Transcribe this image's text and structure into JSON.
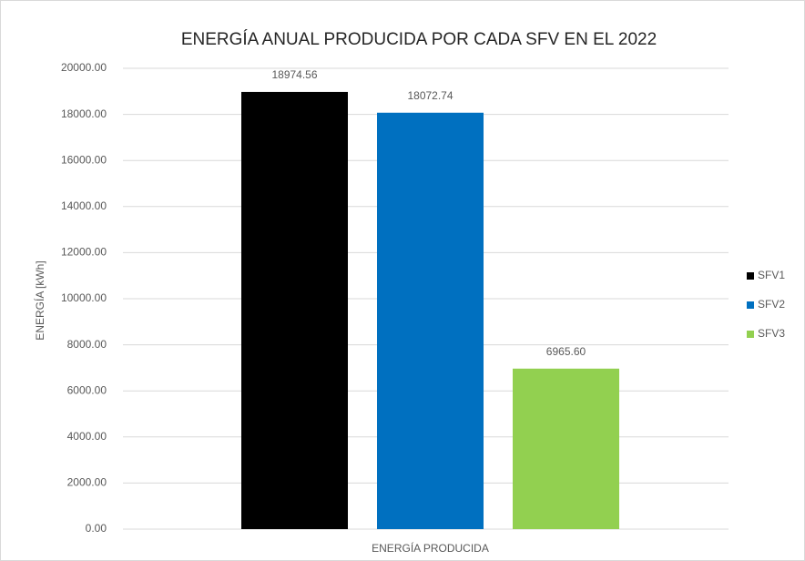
{
  "chart_data": {
    "type": "bar",
    "title": "ENERGÍA ANUAL PRODUCIDA POR CADA SFV EN EL 2022",
    "y_label": "ENERGÍA [kWh]",
    "categories": [
      "ENERGÍA PRODUCIDA"
    ],
    "series": [
      {
        "name": "SFV1",
        "color": "#000000",
        "values": [
          18974.56
        ],
        "value_labels": [
          "18974.56"
        ]
      },
      {
        "name": "SFV2",
        "color": "#0070c0",
        "values": [
          18072.74
        ],
        "value_labels": [
          "18072.74"
        ]
      },
      {
        "name": "SFV3",
        "color": "#92d050",
        "values": [
          6965.6
        ],
        "value_labels": [
          "6965.60"
        ]
      }
    ],
    "ylim": [
      0,
      20000
    ],
    "yticks": [
      {
        "value": 0,
        "label": "0.00"
      },
      {
        "value": 2000,
        "label": "2000.00"
      },
      {
        "value": 4000,
        "label": "4000.00"
      },
      {
        "value": 6000,
        "label": "6000.00"
      },
      {
        "value": 8000,
        "label": "8000.00"
      },
      {
        "value": 10000,
        "label": "10000.00"
      },
      {
        "value": 12000,
        "label": "12000.00"
      },
      {
        "value": 14000,
        "label": "14000.00"
      },
      {
        "value": 16000,
        "label": "16000.00"
      },
      {
        "value": 18000,
        "label": "18000.00"
      },
      {
        "value": 20000,
        "label": "20000.00"
      }
    ],
    "grid": true,
    "legend": "right"
  }
}
